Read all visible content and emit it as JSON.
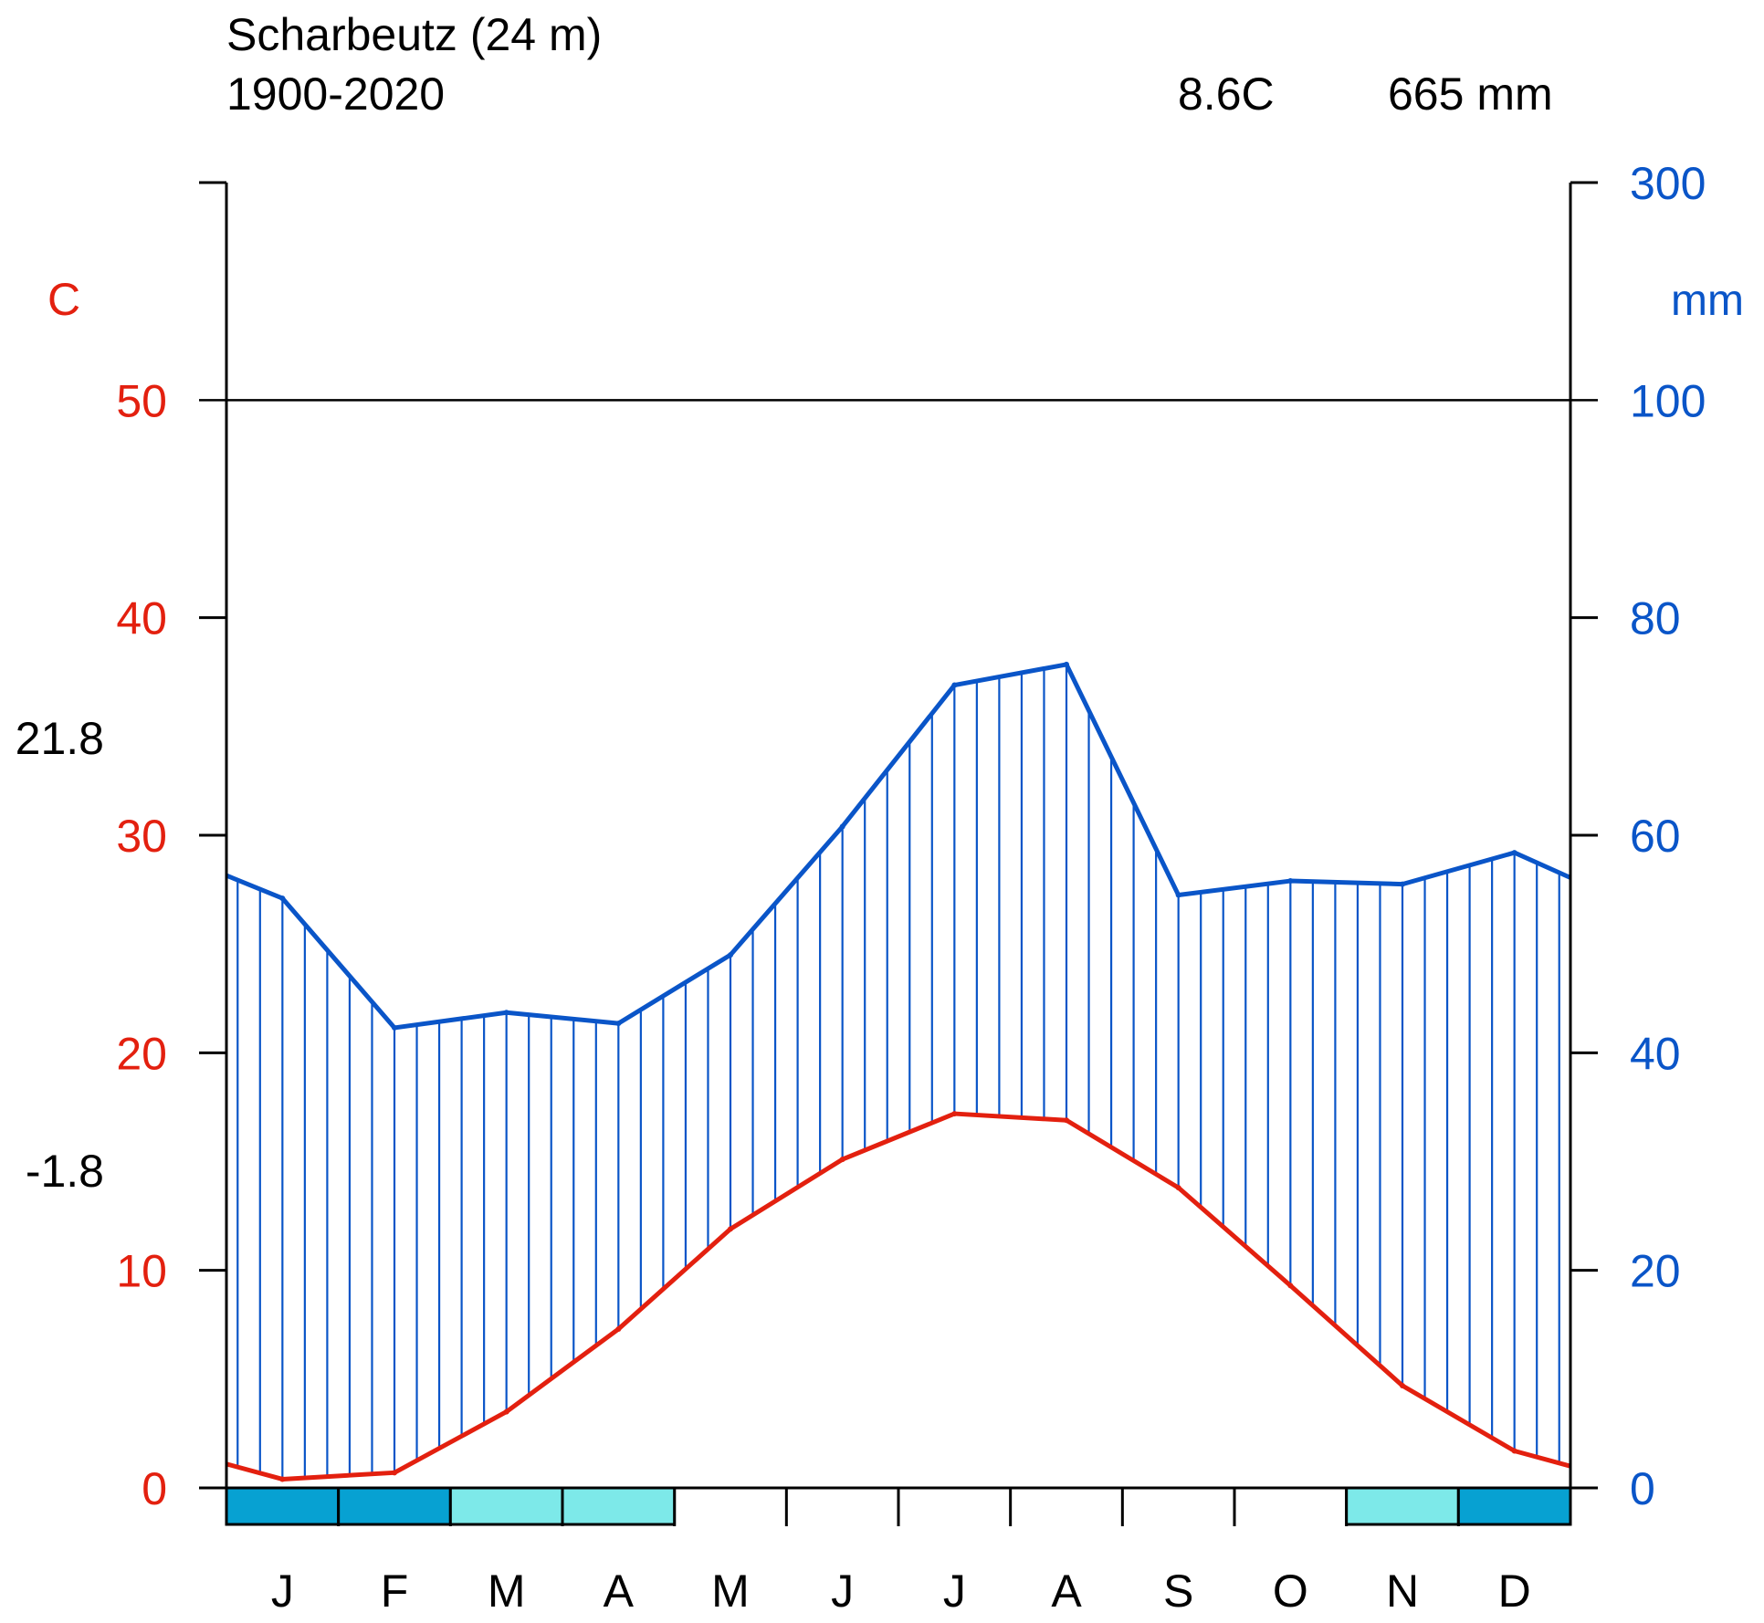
{
  "chart_data": {
    "type": "line",
    "title": "Scharbeutz (24 m)",
    "period": "1900-2020",
    "annual_mean_temperature": "8.6C",
    "annual_precipitation": "665 mm",
    "abs_max_label": "21.8",
    "abs_min_label": "-1.8",
    "left_axis_label": "C",
    "right_axis_label": "mm",
    "categories": [
      "J",
      "F",
      "M",
      "A",
      "M",
      "J",
      "J",
      "A",
      "S",
      "O",
      "N",
      "D"
    ],
    "series": [
      {
        "name": "Temperature",
        "axis": "left",
        "color": "#e3200f",
        "values": [
          0.4,
          0.7,
          3.5,
          7.3,
          11.9,
          15.1,
          17.2,
          16.9,
          13.8,
          9.3,
          4.7,
          1.7
        ]
      },
      {
        "name": "Precipitation",
        "axis": "right",
        "color": "#0a55c8",
        "values": [
          54.2,
          42.3,
          43.7,
          42.7,
          49.0,
          60.8,
          73.8,
          75.7,
          54.5,
          55.8,
          55.5,
          58.4
        ]
      }
    ],
    "temperature_edges": [
      1.1,
      1.0
    ],
    "precipitation_edges": [
      56.3,
      56.1
    ],
    "left_axis": {
      "ylim": [
        0,
        60
      ],
      "ticks": [
        "0",
        "10",
        "20",
        "30",
        "40",
        "50"
      ],
      "tick_values": [
        0,
        10,
        20,
        30,
        40,
        50
      ],
      "color": "#e3200f"
    },
    "right_axis": {
      "ticks": [
        "0",
        "20",
        "40",
        "60",
        "80",
        "100",
        "300"
      ],
      "tick_values": [
        0,
        20,
        40,
        60,
        80,
        100,
        300
      ],
      "color": "#0a55c8",
      "scale_change_at": 100
    },
    "frost_months": [
      {
        "month": "J",
        "type": "certain"
      },
      {
        "month": "F",
        "type": "certain"
      },
      {
        "month": "M",
        "type": "probable"
      },
      {
        "month": "A",
        "type": "probable"
      },
      {
        "month": "N",
        "type": "probable"
      },
      {
        "month": "D",
        "type": "certain"
      }
    ],
    "colors": {
      "frost_certain": "#07a1d2",
      "frost_probable": "#7de9e9",
      "axis": "#000000"
    }
  }
}
